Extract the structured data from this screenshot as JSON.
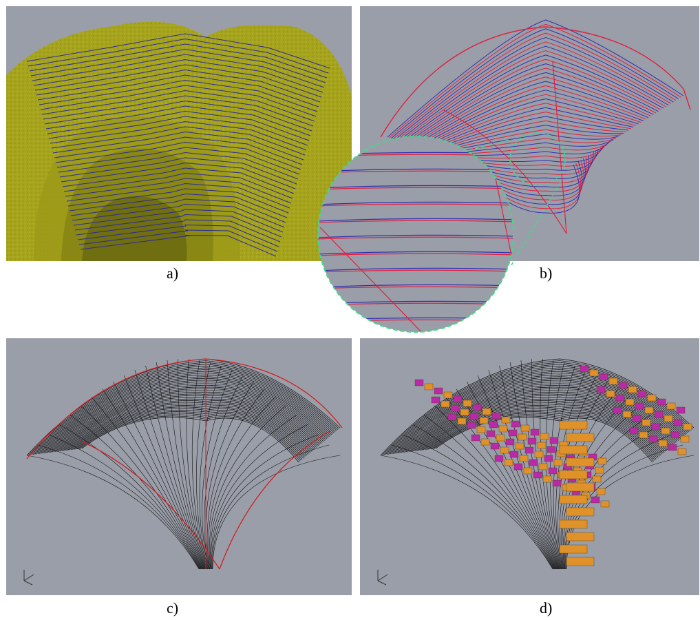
{
  "figure": {
    "panels": [
      {
        "id": "a",
        "caption": "a)",
        "content": "point-cloud-with-section-curves",
        "colors": {
          "cloud": "#a6a41c",
          "curve": "#2a2a9a"
        }
      },
      {
        "id": "b",
        "caption": "b)",
        "content": "section-curves-and-fitted-curves",
        "colors": {
          "fitted": "#e02040",
          "section": "#3030b0"
        }
      },
      {
        "id": "c",
        "caption": "c)",
        "content": "surface-mesh-with-boundary-curves",
        "colors": {
          "mesh": "#111111",
          "boundary": "#d02020"
        }
      },
      {
        "id": "d",
        "caption": "d)",
        "content": "mesh-with-block-courses",
        "colors": {
          "block_a": "#e0922a",
          "block_b": "#b82aa8",
          "mesh": "#111111"
        }
      }
    ],
    "zoom_inset": {
      "panel": "b",
      "border_color": "#3ddc84",
      "style": "dashed"
    },
    "background_color": "#9a9ea8"
  }
}
